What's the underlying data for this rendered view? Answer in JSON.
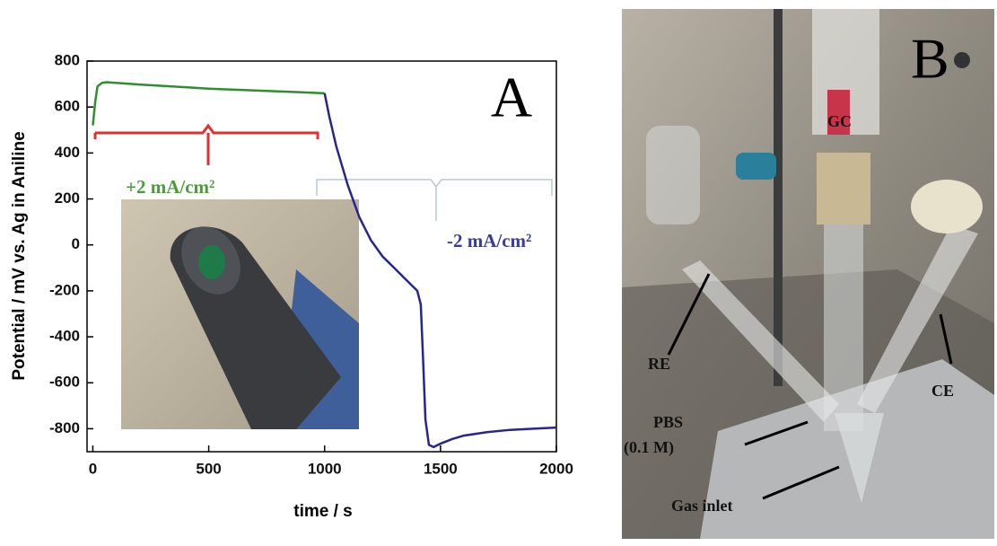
{
  "chart_data": {
    "type": "line",
    "panel_label": "A",
    "x_label": "time / s",
    "y_label": "Potential / mV vs. Ag in Aniline",
    "xlim": [
      -25,
      2000
    ],
    "ylim": [
      -900,
      800
    ],
    "xticks": [
      0,
      500,
      1000,
      1500,
      2000
    ],
    "yticks": [
      800,
      600,
      400,
      200,
      0,
      -200,
      -400,
      -600,
      -800
    ],
    "series": [
      {
        "color": "#2f8f2f",
        "x": [
          0,
          10,
          20,
          40,
          60,
          100,
          200,
          300,
          400,
          500,
          600,
          700,
          800,
          900,
          1000
        ],
        "values": [
          520,
          620,
          690,
          705,
          708,
          705,
          698,
          692,
          686,
          680,
          676,
          672,
          668,
          664,
          660
        ]
      },
      {
        "color": "#26268c",
        "x": [
          1000,
          1020,
          1050,
          1100,
          1150,
          1200,
          1250,
          1300,
          1350,
          1400,
          1415,
          1425,
          1435,
          1450,
          1470,
          1500,
          1550,
          1600,
          1700,
          1800,
          1900,
          2000
        ],
        "values": [
          660,
          560,
          430,
          260,
          120,
          20,
          -50,
          -100,
          -150,
          -200,
          -260,
          -500,
          -760,
          -870,
          -880,
          -865,
          -845,
          -830,
          -815,
          -805,
          -800,
          -795
        ]
      }
    ],
    "annotations": [
      {
        "text": "+2 mA/cm²",
        "color": "#4a9e3a"
      },
      {
        "text": "-2 mA/cm²",
        "color": "#3a3a9a"
      }
    ]
  },
  "photo": {
    "panel_label": "B",
    "labels": [
      "GC",
      "RE",
      "CE",
      "PBS",
      "(0.1 M)",
      "Gas inlet"
    ]
  }
}
